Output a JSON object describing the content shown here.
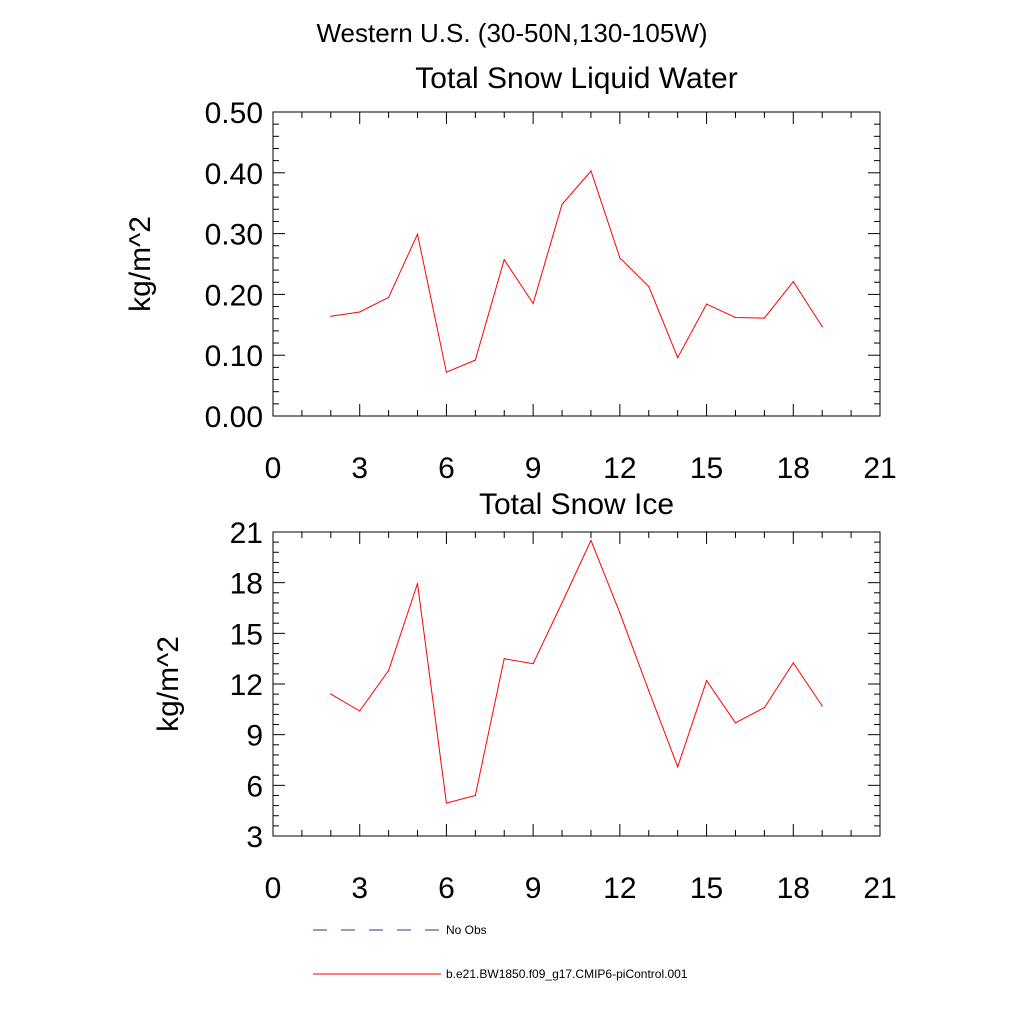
{
  "suptitle": "Western U.S. (30-50N,130-105W)",
  "chart_data": [
    {
      "type": "line",
      "title": "Total Snow Liquid Water",
      "xlabel": "",
      "ylabel": "kg/m^2",
      "xlim": [
        0,
        21
      ],
      "ylim": [
        0,
        0.5
      ],
      "xticks": [
        0,
        3,
        6,
        9,
        12,
        15,
        18,
        21
      ],
      "xtick_labels": [
        "0",
        "3",
        "6",
        "9",
        "12",
        "15",
        "18",
        "21"
      ],
      "yticks": [
        0,
        0.1,
        0.2,
        0.3,
        0.4,
        0.5
      ],
      "ytick_labels": [
        "0.00",
        "0.10",
        "0.20",
        "0.30",
        "0.40",
        "0.50"
      ],
      "grid": false,
      "series": [
        {
          "name": "b.e21.BW1850.f09_g17.CMIP6-piControl.001",
          "color": "#ff0000",
          "x": [
            2,
            3,
            4,
            5,
            6,
            7,
            8,
            9,
            10,
            11,
            12,
            13,
            14,
            15,
            16,
            17,
            18,
            19
          ],
          "y": [
            0.164,
            0.171,
            0.195,
            0.299,
            0.072,
            0.092,
            0.257,
            0.185,
            0.348,
            0.403,
            0.26,
            0.213,
            0.096,
            0.184,
            0.162,
            0.161,
            0.221,
            0.147
          ]
        }
      ]
    },
    {
      "type": "line",
      "title": "Total Snow Ice",
      "xlabel": "",
      "ylabel": "kg/m^2",
      "xlim": [
        0,
        21
      ],
      "ylim": [
        3,
        21
      ],
      "xticks": [
        0,
        3,
        6,
        9,
        12,
        15,
        18,
        21
      ],
      "xtick_labels": [
        "0",
        "3",
        "6",
        "9",
        "12",
        "15",
        "18",
        "21"
      ],
      "yticks": [
        3,
        6,
        9,
        12,
        15,
        18,
        21
      ],
      "ytick_labels": [
        "3",
        "6",
        "9",
        "12",
        "15",
        "18",
        "21"
      ],
      "grid": false,
      "series": [
        {
          "name": "b.e21.BW1850.f09_g17.CMIP6-piControl.001",
          "color": "#ff0000",
          "x": [
            2,
            3,
            4,
            5,
            6,
            7,
            8,
            9,
            10,
            11,
            12,
            13,
            14,
            15,
            16,
            17,
            18,
            19
          ],
          "y": [
            11.4,
            10.4,
            12.8,
            17.95,
            4.95,
            5.4,
            13.5,
            13.2,
            16.8,
            20.5,
            16.2,
            11.6,
            7.1,
            12.2,
            9.7,
            10.6,
            13.25,
            10.7
          ]
        }
      ]
    }
  ],
  "legend": {
    "placement": "bottom-center",
    "items": [
      {
        "label": "No Obs",
        "color": "#2f3a7a",
        "dash": true
      },
      {
        "label": "b.e21.BW1850.f09_g17.CMIP6-piControl.001",
        "color": "#ff0000",
        "dash": false
      }
    ]
  }
}
